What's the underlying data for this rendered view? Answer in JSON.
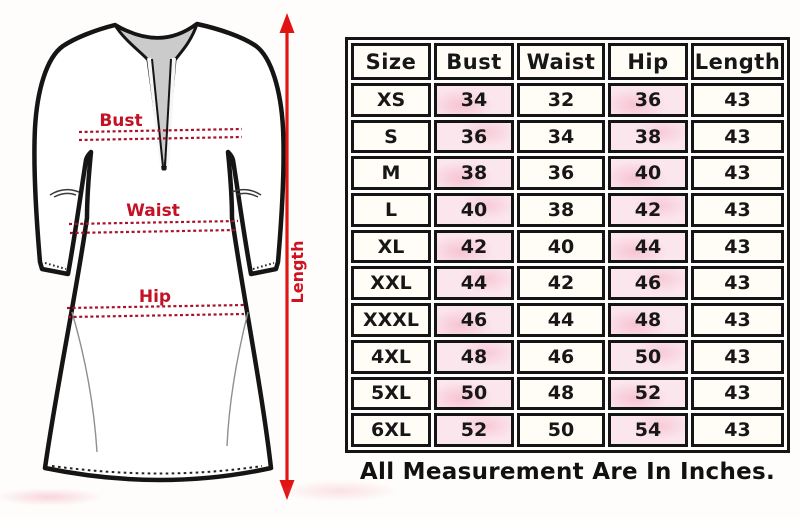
{
  "diagram": {
    "labels": {
      "bust": "Bust",
      "waist": "Waist",
      "hip": "Hip",
      "length": "Length"
    },
    "colors": {
      "annotation_red": "#c31225",
      "dash_red": "#a8132a",
      "arrow_red": "#e11414",
      "outline_black": "#151515",
      "placket_gray": "#cbcbcb"
    }
  },
  "size_chart": {
    "columns": [
      "Size",
      "Bust",
      "Waist",
      "Hip",
      "Length"
    ],
    "rows": [
      [
        "XS",
        "34",
        "32",
        "36",
        "43"
      ],
      [
        "S",
        "36",
        "34",
        "38",
        "43"
      ],
      [
        "M",
        "38",
        "36",
        "40",
        "43"
      ],
      [
        "L",
        "40",
        "38",
        "42",
        "43"
      ],
      [
        "XL",
        "42",
        "40",
        "44",
        "43"
      ],
      [
        "XXL",
        "44",
        "42",
        "46",
        "43"
      ],
      [
        "XXXL",
        "46",
        "44",
        "48",
        "43"
      ],
      [
        "4XL",
        "48",
        "46",
        "50",
        "43"
      ],
      [
        "5XL",
        "50",
        "48",
        "52",
        "43"
      ],
      [
        "6XL",
        "52",
        "50",
        "54",
        "43"
      ]
    ],
    "highlighted_columns": [
      "Bust",
      "Hip"
    ],
    "highlight_color": "#fbe6ee",
    "unit_note": "All Measurement Are In Inches."
  }
}
